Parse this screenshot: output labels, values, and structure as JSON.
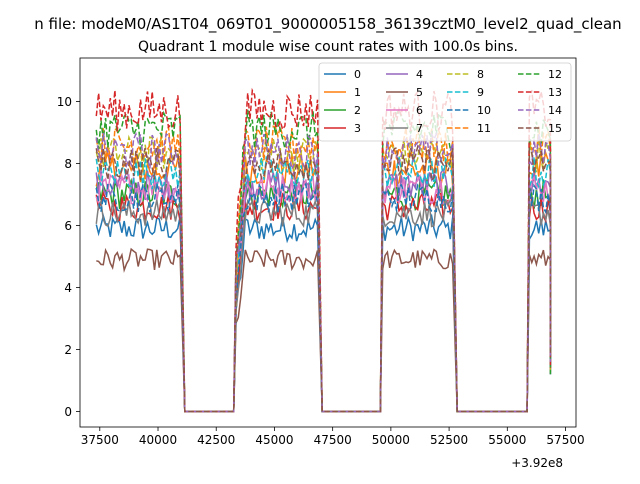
{
  "figure": {
    "suptitle": "n file: modeM0/AS1T04_069T01_9000005158_36139cztM0_level2_quad_clean"
  },
  "chart_data": {
    "type": "line",
    "title": "Quadrant 1 module wise count rates with 100.0s bins.",
    "xlabel": "",
    "ylabel": "",
    "x_offset_label": "+3.92e8",
    "xlim": [
      36650,
      57950
    ],
    "ylim": [
      -0.5,
      11.4
    ],
    "x_ticks": [
      37500,
      40000,
      42500,
      45000,
      47500,
      50000,
      52500,
      55000,
      57500
    ],
    "y_ticks": [
      0,
      2,
      4,
      6,
      8,
      10
    ],
    "grid": false,
    "legend_position": "top-right",
    "legend_columns": 4,
    "segments": [
      {
        "start": 37350,
        "end": 40950
      },
      {
        "start": 43350,
        "end": 46850
      },
      {
        "start": 49650,
        "end": 52650
      },
      {
        "start": 55950,
        "end": 56850
      }
    ],
    "gaps": [
      {
        "start": 41150,
        "end": 43250
      },
      {
        "start": 47050,
        "end": 49550
      },
      {
        "start": 52850,
        "end": 55850
      }
    ],
    "series": [
      {
        "name": "0",
        "color": "#1f77b4",
        "dash": "solid",
        "level": 5.9
      },
      {
        "name": "1",
        "color": "#ff7f0e",
        "dash": "solid",
        "level": 7.8
      },
      {
        "name": "2",
        "color": "#2ca02c",
        "dash": "solid",
        "level": 7.0
      },
      {
        "name": "3",
        "color": "#d62728",
        "dash": "solid",
        "level": 6.6
      },
      {
        "name": "4",
        "color": "#9467bd",
        "dash": "solid",
        "level": 7.3
      },
      {
        "name": "5",
        "color": "#8c564b",
        "dash": "solid",
        "level": 4.9
      },
      {
        "name": "6",
        "color": "#e377c2",
        "dash": "solid",
        "level": 7.2
      },
      {
        "name": "7",
        "color": "#7f7f7f",
        "dash": "solid",
        "level": 6.4
      },
      {
        "name": "8",
        "color": "#bcbd22",
        "dash": "dashed",
        "level": 8.3
      },
      {
        "name": "9",
        "color": "#17becf",
        "dash": "dashed",
        "level": 7.7
      },
      {
        "name": "10",
        "color": "#1f77b4",
        "dash": "dashed",
        "level": 6.9
      },
      {
        "name": "11",
        "color": "#ff7f0e",
        "dash": "dashed",
        "level": 8.6
      },
      {
        "name": "12",
        "color": "#2ca02c",
        "dash": "dashed",
        "level": 9.1
      },
      {
        "name": "13",
        "color": "#d62728",
        "dash": "dashed",
        "level": 9.7
      },
      {
        "name": "14",
        "color": "#9467bd",
        "dash": "dashed",
        "level": 8.4
      },
      {
        "name": "15",
        "color": "#8c564b",
        "dash": "dashed",
        "level": 8.0
      }
    ]
  }
}
